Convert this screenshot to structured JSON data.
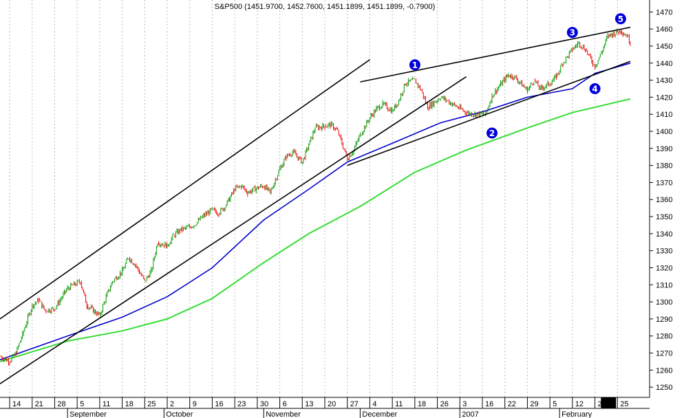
{
  "chart_data": {
    "type": "line",
    "title": "S&P500 (1451.9700, 1452.7600, 1451.1899, 1451.1899, -0.7900)",
    "xlabel": "",
    "ylabel": "",
    "ylim": [
      1244,
      1477
    ],
    "y_ticks": [
      1250,
      1260,
      1270,
      1280,
      1290,
      1300,
      1310,
      1320,
      1330,
      1340,
      1350,
      1360,
      1370,
      1380,
      1390,
      1400,
      1410,
      1420,
      1430,
      1440,
      1450,
      1460,
      1470
    ],
    "day_ticks": [
      "14",
      "21",
      "28",
      "5",
      "11",
      "18",
      "25",
      "2",
      "9",
      "16",
      "23",
      "30",
      "6",
      "13",
      "20",
      "27",
      "4",
      "11",
      "18",
      "26",
      "3",
      "16",
      "22",
      "29",
      "5",
      "12",
      "20",
      "25"
    ],
    "month_labels": [
      "September",
      "October",
      "November",
      "December",
      "2007",
      "February"
    ],
    "grid": true,
    "colors": {
      "up_bar": "#009900",
      "down_bar": "#ee0000",
      "ma_fast": "#0000cc",
      "ma_slow": "#33dd33",
      "trendline": "#000000",
      "wave_marker": "#0000dd",
      "grid": "#bbbbbb"
    },
    "series": [
      {
        "type": "price",
        "x": [
          "2006-08-11",
          "2006-08-14",
          "2006-08-16",
          "2006-08-18",
          "2006-08-21",
          "2006-08-23",
          "2006-08-25",
          "2006-08-28",
          "2006-08-30",
          "2006-09-01",
          "2006-09-05",
          "2006-09-07",
          "2006-09-11",
          "2006-09-13",
          "2006-09-15",
          "2006-09-18",
          "2006-09-20",
          "2006-09-22",
          "2006-09-25",
          "2006-09-27",
          "2006-09-29",
          "2006-10-02",
          "2006-10-04",
          "2006-10-06",
          "2006-10-09",
          "2006-10-11",
          "2006-10-13",
          "2006-10-16",
          "2006-10-18",
          "2006-10-20",
          "2006-10-23",
          "2006-10-25",
          "2006-10-27",
          "2006-10-30",
          "2006-11-01",
          "2006-11-03",
          "2006-11-06",
          "2006-11-08",
          "2006-11-10",
          "2006-11-13",
          "2006-11-15",
          "2006-11-17",
          "2006-11-20",
          "2006-11-22",
          "2006-11-24",
          "2006-11-27",
          "2006-11-29",
          "2006-12-01",
          "2006-12-04",
          "2006-12-06",
          "2006-12-08",
          "2006-12-11",
          "2006-12-13",
          "2006-12-15",
          "2006-12-18",
          "2006-12-20",
          "2006-12-22",
          "2006-12-26",
          "2006-12-28",
          "2007-01-03",
          "2007-01-05",
          "2007-01-09",
          "2007-01-11",
          "2007-01-16",
          "2007-01-18",
          "2007-01-22",
          "2007-01-24",
          "2007-01-26",
          "2007-01-29",
          "2007-01-31",
          "2007-02-02",
          "2007-02-05",
          "2007-02-07",
          "2007-02-09",
          "2007-02-12",
          "2007-02-14",
          "2007-02-16",
          "2007-02-20",
          "2007-02-22",
          "2007-02-23"
        ],
        "close": [
          1268,
          1265,
          1270,
          1281,
          1298,
          1301,
          1295,
          1296,
          1302,
          1308,
          1312,
          1298,
          1292,
          1303,
          1312,
          1318,
          1326,
          1322,
          1312,
          1318,
          1335,
          1333,
          1339,
          1342,
          1344,
          1346,
          1350,
          1354,
          1352,
          1356,
          1366,
          1368,
          1364,
          1367,
          1368,
          1364,
          1378,
          1385,
          1388,
          1382,
          1392,
          1402,
          1403,
          1404,
          1400,
          1384,
          1389,
          1398,
          1408,
          1413,
          1416,
          1412,
          1418,
          1428,
          1430,
          1424,
          1414,
          1420,
          1418,
          1411,
          1410,
          1410,
          1421,
          1433,
          1432,
          1424,
          1430,
          1425,
          1428,
          1432,
          1440,
          1448,
          1452,
          1448,
          1438,
          1446,
          1456,
          1459,
          1456,
          1452
        ]
      },
      {
        "type": "moving_average_fast",
        "x": [
          "2006-08-11",
          "2006-09-01",
          "2006-09-18",
          "2006-10-02",
          "2006-10-16",
          "2006-11-01",
          "2006-11-15",
          "2006-11-27",
          "2006-12-11",
          "2006-12-26",
          "2007-01-09",
          "2007-01-22",
          "2007-02-05",
          "2007-02-12",
          "2007-02-23"
        ],
        "values": [
          1266,
          1280,
          1291,
          1303,
          1320,
          1348,
          1366,
          1382,
          1393,
          1405,
          1412,
          1420,
          1425,
          1434,
          1440
        ]
      },
      {
        "type": "moving_average_slow",
        "x": [
          "2006-08-11",
          "2006-09-01",
          "2006-09-18",
          "2006-10-02",
          "2006-10-16",
          "2006-11-01",
          "2006-11-15",
          "2006-12-01",
          "2006-12-18",
          "2007-01-03",
          "2007-01-22",
          "2007-02-05",
          "2007-02-23"
        ],
        "values": [
          1265,
          1277,
          1283,
          1290,
          1302,
          1323,
          1340,
          1356,
          1376,
          1389,
          1402,
          1411,
          1419
        ]
      }
    ],
    "trendlines": [
      {
        "from": [
          "2006-08-11",
          1290
        ],
        "to": [
          "2006-12-04",
          1442
        ]
      },
      {
        "from": [
          "2006-08-11",
          1252
        ],
        "to": [
          "2007-01-03",
          1432
        ]
      },
      {
        "from": [
          "2006-11-27",
          1380
        ],
        "to": [
          "2007-02-23",
          1441
        ]
      },
      {
        "from": [
          "2006-12-01",
          1429
        ],
        "to": [
          "2007-02-23",
          1461
        ]
      }
    ],
    "annotations": [
      {
        "label": "1",
        "x": "2006-12-18",
        "y": 1439
      },
      {
        "label": "2",
        "x": "2007-01-11",
        "y": 1399
      },
      {
        "label": "3",
        "x": "2007-02-05",
        "y": 1458
      },
      {
        "label": "4",
        "x": "2007-02-12",
        "y": 1425
      },
      {
        "label": "5",
        "x": "2007-02-20",
        "y": 1466
      }
    ]
  }
}
